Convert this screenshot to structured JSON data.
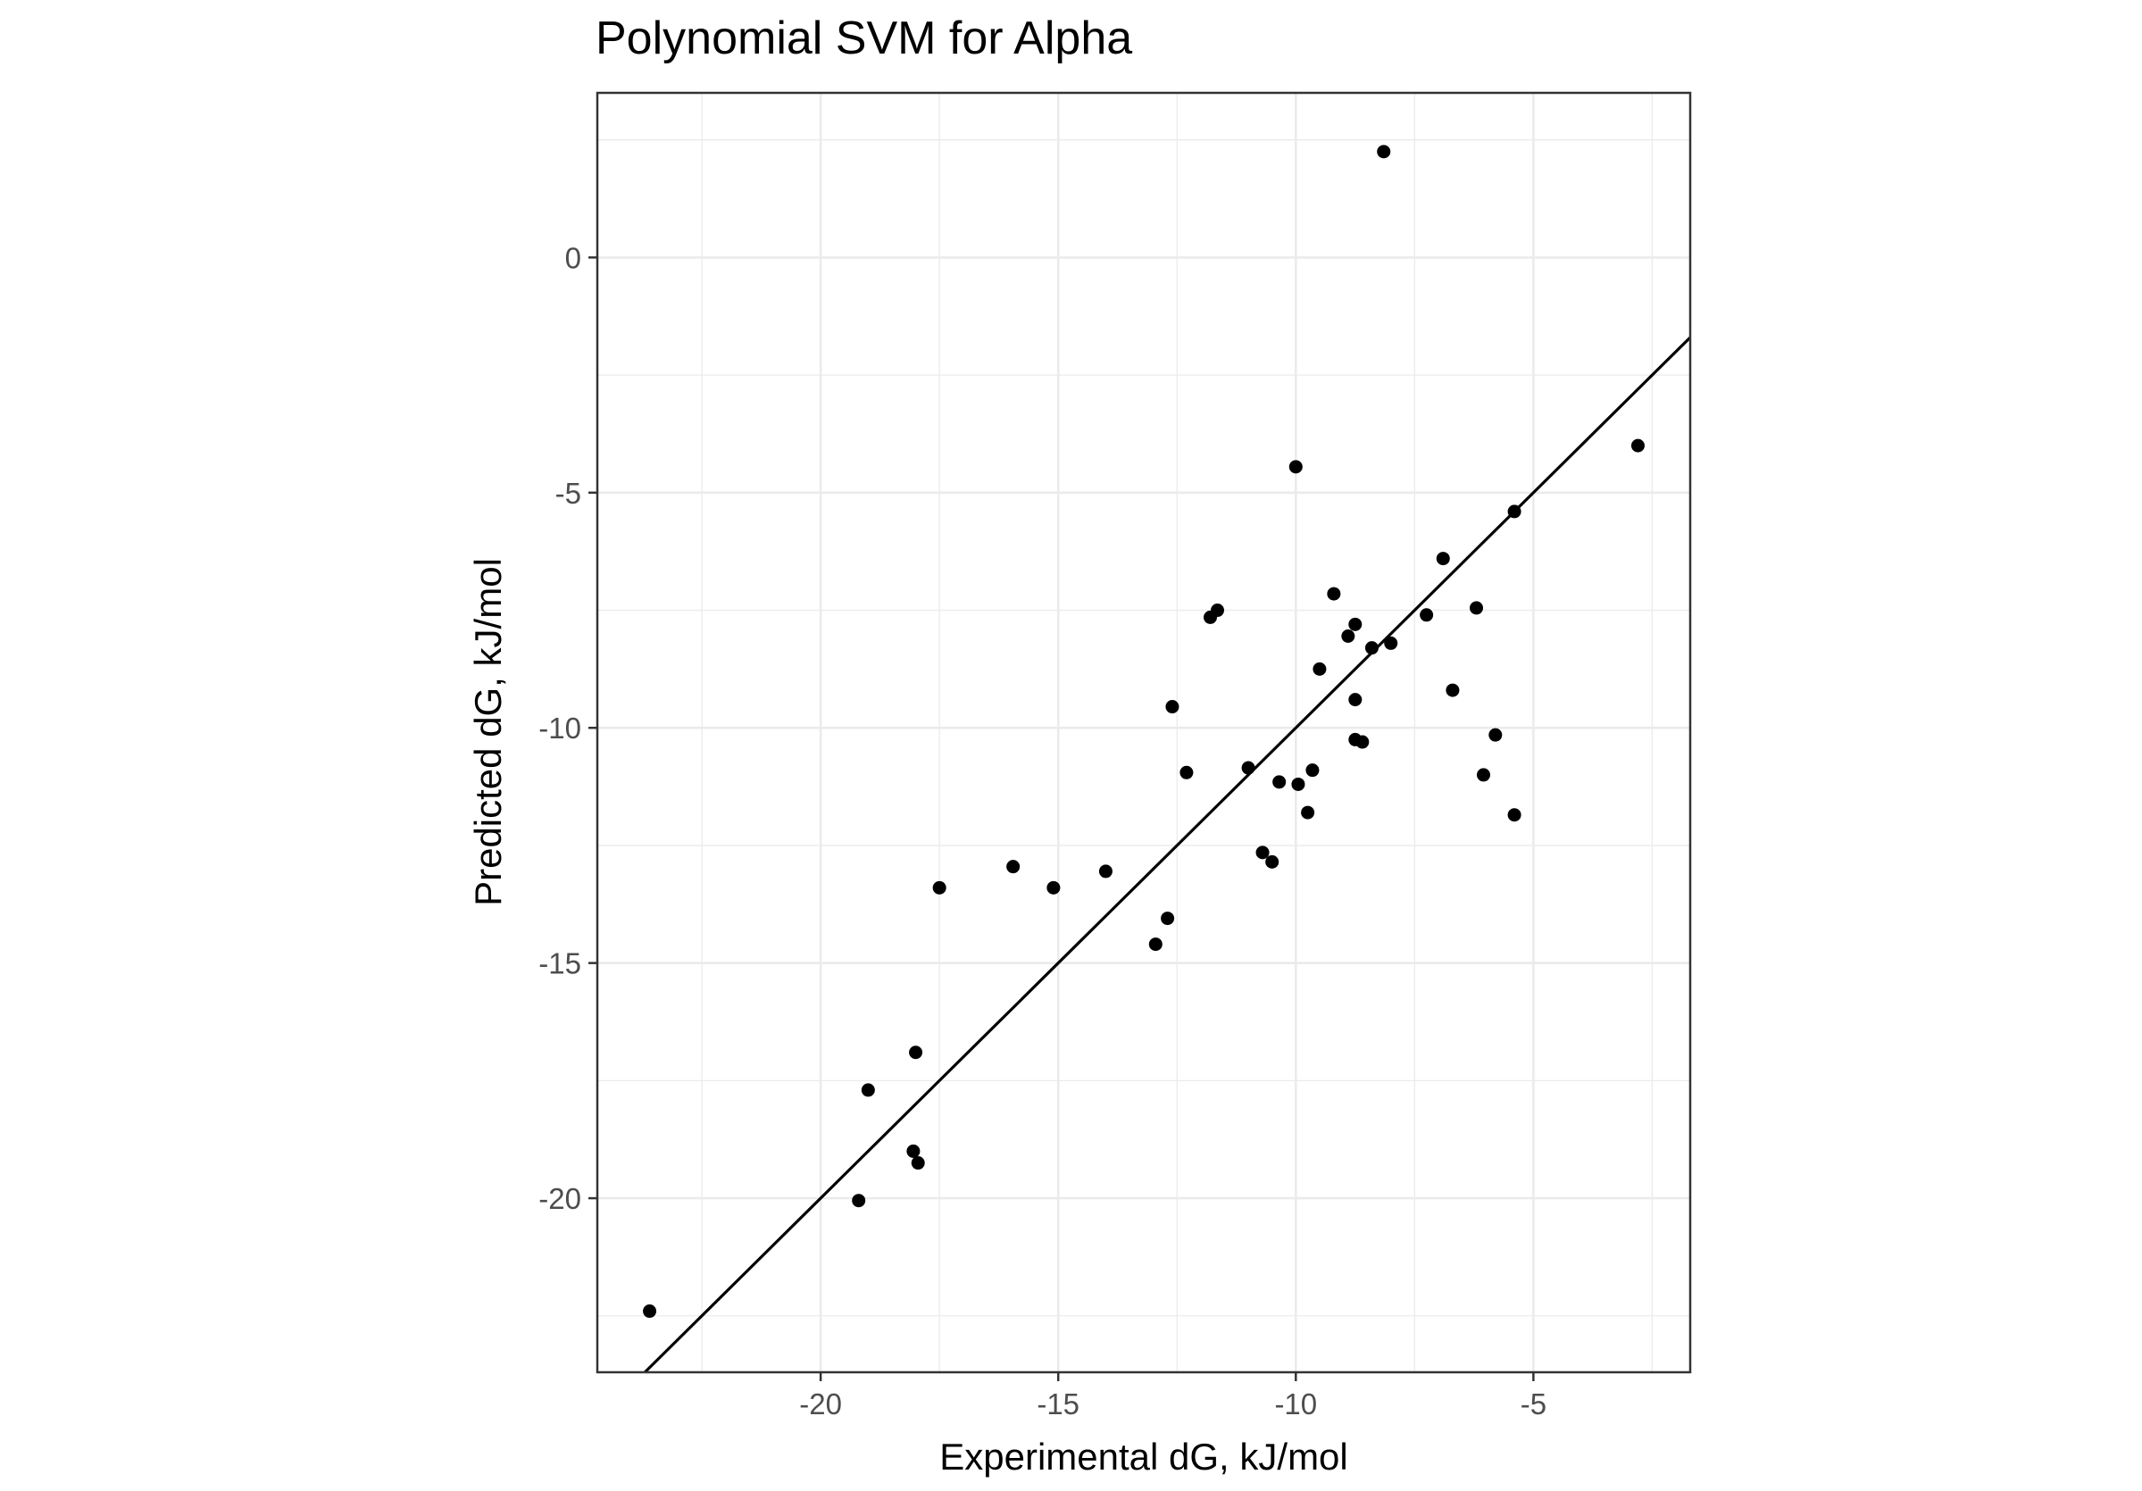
{
  "chart_data": {
    "type": "scatter",
    "title": "Polynomial SVM for Alpha",
    "xlabel": "Experimental dG, kJ/mol",
    "ylabel": "Predicted dG, kJ/mol",
    "xlim": [
      -24.7,
      -1.7
    ],
    "ylim": [
      -23.7,
      3.5
    ],
    "x_ticks": [
      -20,
      -15,
      -10,
      -5
    ],
    "x_tick_labels": [
      "-20",
      "-15",
      "-10",
      "-5"
    ],
    "y_ticks": [
      -20,
      -15,
      -10,
      -5,
      0
    ],
    "y_tick_labels": [
      "-20",
      "-15",
      "-10",
      "-5",
      "0"
    ],
    "grid": true,
    "legend": "none",
    "reference_line": {
      "slope": 1,
      "intercept": 0
    },
    "colors": {
      "points": "#000000",
      "line": "#000000",
      "grid": "#ebebeb",
      "panel_border": "#333333"
    },
    "points": [
      {
        "x": -23.6,
        "y": -22.4
      },
      {
        "x": -19.2,
        "y": -20.05
      },
      {
        "x": -19.0,
        "y": -17.7
      },
      {
        "x": -18.05,
        "y": -19.0
      },
      {
        "x": -17.95,
        "y": -19.25
      },
      {
        "x": -18.0,
        "y": -16.9
      },
      {
        "x": -17.5,
        "y": -13.4
      },
      {
        "x": -15.95,
        "y": -12.95
      },
      {
        "x": -15.1,
        "y": -13.4
      },
      {
        "x": -14.0,
        "y": -13.05
      },
      {
        "x": -12.95,
        "y": -14.6
      },
      {
        "x": -12.7,
        "y": -14.05
      },
      {
        "x": -12.6,
        "y": -9.55
      },
      {
        "x": -12.3,
        "y": -10.95
      },
      {
        "x": -11.8,
        "y": -7.65
      },
      {
        "x": -11.65,
        "y": -7.5
      },
      {
        "x": -11.0,
        "y": -10.85
      },
      {
        "x": -10.7,
        "y": -12.65
      },
      {
        "x": -10.5,
        "y": -12.85
      },
      {
        "x": -10.35,
        "y": -11.15
      },
      {
        "x": -10.0,
        "y": -4.45
      },
      {
        "x": -9.95,
        "y": -11.2
      },
      {
        "x": -9.75,
        "y": -11.8
      },
      {
        "x": -9.65,
        "y": -10.9
      },
      {
        "x": -9.5,
        "y": -8.75
      },
      {
        "x": -9.2,
        "y": -7.15
      },
      {
        "x": -8.9,
        "y": -8.05
      },
      {
        "x": -8.75,
        "y": -7.8
      },
      {
        "x": -8.75,
        "y": -9.4
      },
      {
        "x": -8.75,
        "y": -10.25
      },
      {
        "x": -8.6,
        "y": -10.3
      },
      {
        "x": -8.4,
        "y": -8.3
      },
      {
        "x": -8.15,
        "y": 2.25
      },
      {
        "x": -8.0,
        "y": -8.2
      },
      {
        "x": -7.25,
        "y": -7.6
      },
      {
        "x": -6.9,
        "y": -6.4
      },
      {
        "x": -6.7,
        "y": -9.2
      },
      {
        "x": -6.2,
        "y": -7.45
      },
      {
        "x": -6.05,
        "y": -11.0
      },
      {
        "x": -5.8,
        "y": -10.15
      },
      {
        "x": -5.4,
        "y": -5.4
      },
      {
        "x": -5.4,
        "y": -11.85
      },
      {
        "x": -2.8,
        "y": -4.0
      }
    ]
  }
}
